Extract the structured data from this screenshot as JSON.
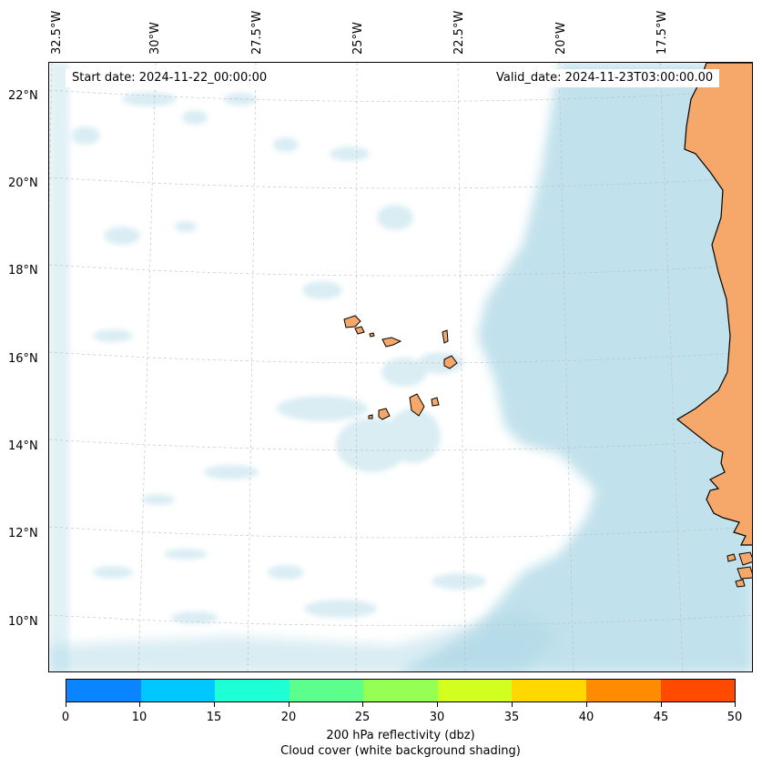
{
  "header": {
    "start_date": "Start date: 2024-11-22_00:00:00",
    "valid_date": "Valid_date: 2024-11-23T03:00:00.00"
  },
  "longitude_labels": [
    "32.5°W",
    "30°W",
    "27.5°W",
    "25°W",
    "22.5°W",
    "20°W",
    "17.5°W"
  ],
  "latitude_labels": [
    "22°N",
    "20°N",
    "18°N",
    "16°N",
    "14°N",
    "12°N",
    "10°N"
  ],
  "colorbar": {
    "ticks": [
      "0",
      "10",
      "15",
      "20",
      "25",
      "30",
      "35",
      "40",
      "45",
      "50"
    ],
    "colors": [
      "#0a84ff",
      "#00c8ff",
      "#1effd6",
      "#5cff8c",
      "#96ff54",
      "#d2ff20",
      "#ffd800",
      "#ff8c00",
      "#ff4a00"
    ],
    "label_line1": "200 hPa reflectivity (dbz)",
    "label_line2": "Cloud cover (white background shading)"
  },
  "map_colors": {
    "land": "#f6a86a",
    "cloud": "#add8e6",
    "coast": "#000000",
    "grid": "#bbbbbb"
  }
}
